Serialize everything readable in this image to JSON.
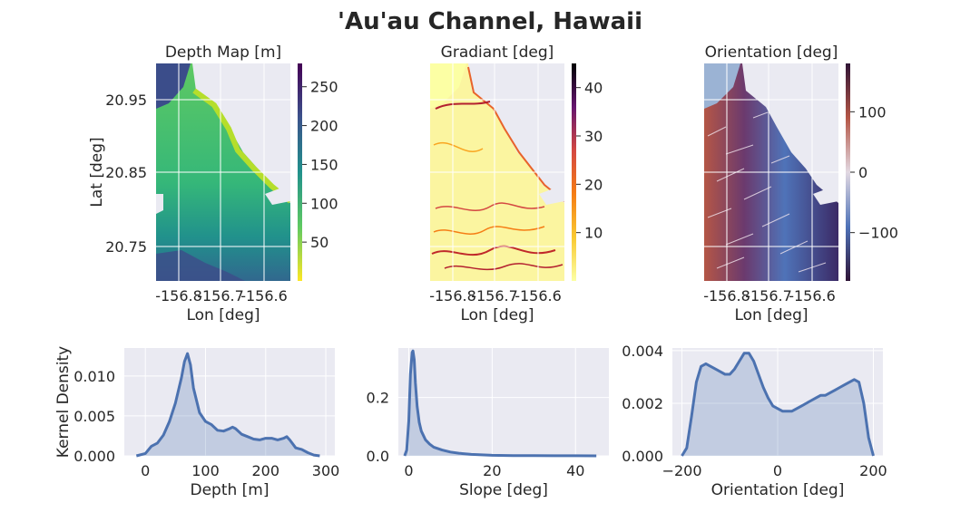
{
  "figure": {
    "title": "'Au'au Channel, Hawaii"
  },
  "colors": {
    "axes_bg": "#EAEAF2",
    "grid": "#FFFFFF",
    "kde_line": "#4C72B0",
    "kde_fill": "#4C72B0"
  },
  "chart_data": [
    {
      "type": "heatmap",
      "title": "Depth Map [m]",
      "xlabel": "Lon [deg]",
      "ylabel": "Lat [deg]",
      "xticks": [
        "-156.8",
        "-156.7",
        "-156.6"
      ],
      "yticks": [
        "20.95",
        "20.85",
        "20.75"
      ],
      "colormap": "viridis_r",
      "colorbar_ticks": [
        "50",
        "100",
        "150",
        "200",
        "250"
      ],
      "colorbar_range": [
        0,
        280
      ]
    },
    {
      "type": "heatmap",
      "title": "Gradiant [deg]",
      "xlabel": "Lon [deg]",
      "ylabel": "",
      "xticks": [
        "-156.8",
        "-156.7",
        "-156.6"
      ],
      "yticks": [],
      "colormap": "inferno_r",
      "colorbar_ticks": [
        "10",
        "20",
        "30",
        "40"
      ],
      "colorbar_range": [
        0,
        45
      ]
    },
    {
      "type": "heatmap",
      "title": "Orientation [deg]",
      "xlabel": "Lon [deg]",
      "ylabel": "",
      "xticks": [
        "-156.8",
        "-156.7",
        "-156.6"
      ],
      "yticks": [],
      "colormap": "twilight_shifted",
      "colorbar_ticks": [
        "100",
        "0",
        "−100"
      ],
      "colorbar_range": [
        -180,
        180
      ]
    },
    {
      "type": "area",
      "xlabel": "Depth [m]",
      "ylabel": "Kernel Density",
      "xlim": [
        -35,
        315
      ],
      "ylim": [
        0,
        0.0135
      ],
      "xticks": [
        0,
        100,
        200,
        300
      ],
      "xticklabels": [
        "0",
        "100",
        "200",
        "300"
      ],
      "yticks": [
        0,
        0.005,
        0.01
      ],
      "yticklabels": [
        "0.000",
        "0.005",
        "0.010"
      ],
      "x": [
        -15,
        0,
        10,
        20,
        30,
        40,
        50,
        60,
        65,
        70,
        75,
        80,
        90,
        100,
        110,
        120,
        130,
        140,
        145,
        150,
        160,
        170,
        180,
        190,
        200,
        210,
        220,
        230,
        235,
        240,
        250,
        260,
        270,
        280,
        290
      ],
      "y": [
        0,
        0.0003,
        0.0012,
        0.0016,
        0.0026,
        0.0043,
        0.0066,
        0.0098,
        0.0118,
        0.0128,
        0.0114,
        0.0085,
        0.0054,
        0.0043,
        0.0039,
        0.0032,
        0.0031,
        0.0034,
        0.0036,
        0.0034,
        0.0027,
        0.0024,
        0.0021,
        0.002,
        0.0022,
        0.0022,
        0.002,
        0.0022,
        0.0024,
        0.002,
        0.001,
        0.0008,
        0.0004,
        0.0001,
        0
      ]
    },
    {
      "type": "area",
      "xlabel": "Slope [deg]",
      "ylabel": "",
      "xlim": [
        -2.5,
        48
      ],
      "ylim": [
        0,
        0.37
      ],
      "xticks": [
        0,
        20,
        40
      ],
      "xticklabels": [
        "0",
        "20",
        "40"
      ],
      "yticks": [
        0,
        0.2
      ],
      "yticklabels": [
        "0.0",
        "0.2"
      ],
      "x": [
        -1,
        -0.5,
        0,
        0.4,
        0.8,
        1.0,
        1.3,
        1.6,
        2,
        2.5,
        3,
        4,
        5,
        6,
        8,
        10,
        12,
        15,
        20,
        25,
        30,
        35,
        40,
        45
      ],
      "y": [
        0,
        0.02,
        0.12,
        0.28,
        0.355,
        0.36,
        0.33,
        0.25,
        0.17,
        0.115,
        0.085,
        0.055,
        0.04,
        0.03,
        0.02,
        0.013,
        0.009,
        0.005,
        0.002,
        0.001,
        0.0005,
        0.0003,
        0.0002,
        0.0001
      ]
    },
    {
      "type": "area",
      "xlabel": "Orientation [deg]",
      "ylabel": "",
      "xlim": [
        -220,
        220
      ],
      "ylim": [
        0,
        0.0041
      ],
      "xticks": [
        -200,
        0,
        200
      ],
      "xticklabels": [
        "−200",
        "0",
        "200"
      ],
      "yticks": [
        0,
        0.002,
        0.004
      ],
      "yticklabels": [
        "0.000",
        "0.002",
        "0.004"
      ],
      "x": [
        -200,
        -190,
        -180,
        -170,
        -160,
        -150,
        -140,
        -130,
        -120,
        -110,
        -100,
        -90,
        -80,
        -70,
        -60,
        -50,
        -40,
        -30,
        -20,
        -10,
        0,
        10,
        20,
        30,
        40,
        50,
        60,
        70,
        80,
        90,
        100,
        110,
        120,
        130,
        140,
        150,
        160,
        170,
        180,
        190,
        200
      ],
      "y": [
        0,
        0.0003,
        0.0015,
        0.0028,
        0.0034,
        0.0035,
        0.0034,
        0.0033,
        0.0032,
        0.0031,
        0.0031,
        0.0033,
        0.0036,
        0.0039,
        0.0039,
        0.0036,
        0.0031,
        0.0026,
        0.0022,
        0.0019,
        0.0018,
        0.0017,
        0.0017,
        0.0017,
        0.0018,
        0.0019,
        0.002,
        0.0021,
        0.0022,
        0.0023,
        0.0023,
        0.0024,
        0.0025,
        0.0026,
        0.0027,
        0.0028,
        0.0029,
        0.0028,
        0.002,
        0.0007,
        0
      ]
    }
  ]
}
